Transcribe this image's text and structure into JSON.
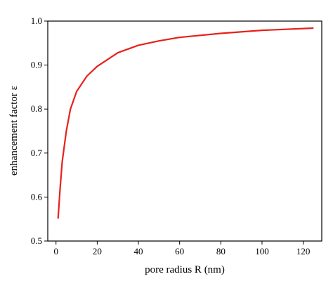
{
  "chart_data": {
    "type": "line",
    "x_label": "pore radius R (nm)",
    "y_label": "enhancement factor ε",
    "x": [
      1,
      2,
      3,
      5,
      7,
      10,
      15,
      20,
      30,
      40,
      50,
      60,
      80,
      100,
      125
    ],
    "series": [
      {
        "color": "#e8211c",
        "values": [
          0.551,
          0.62,
          0.68,
          0.75,
          0.8,
          0.84,
          0.875,
          0.897,
          0.928,
          0.945,
          0.955,
          0.963,
          0.972,
          0.979,
          0.984
        ]
      }
    ],
    "xlim": [
      -4,
      129
    ],
    "xticks": [
      0,
      20,
      40,
      60,
      80,
      100,
      120
    ],
    "ylim": [
      0.5,
      1.0
    ],
    "yticks": [
      0.5,
      0.6,
      0.7,
      0.8,
      0.9,
      {
        "value": 1,
        "label": "1.0"
      }
    ]
  }
}
